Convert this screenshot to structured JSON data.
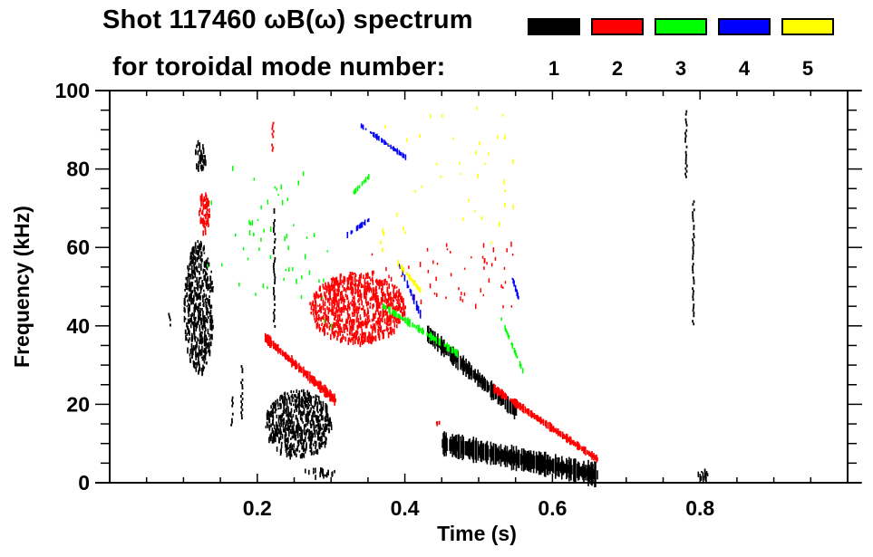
{
  "chart_data": {
    "type": "heatmap",
    "title": "Shot 117460 ωB(ω) spectrum",
    "subtitle": "for toroidal mode number:",
    "xlabel": "Time (s)",
    "ylabel": "Frequency (kHz)",
    "xlim": [
      0.0,
      1.0
    ],
    "ylim": [
      0,
      100
    ],
    "x_major_ticks": [
      0.2,
      0.4,
      0.6,
      0.8
    ],
    "x_tick_labels": [
      "0.2",
      "0.4",
      "0.6",
      "0.8"
    ],
    "x_minor_step": 0.05,
    "y_major_ticks": [
      0,
      20,
      40,
      60,
      80,
      100
    ],
    "y_tick_labels": [
      "0",
      "20",
      "40",
      "60",
      "80",
      "100"
    ],
    "y_minor_step": 5,
    "grid": false,
    "legend": {
      "placement": "top-right",
      "entries": [
        {
          "label": "1",
          "mode": 1,
          "color": "#000000"
        },
        {
          "label": "2",
          "mode": 2,
          "color": "#ff0000"
        },
        {
          "label": "3",
          "mode": 3,
          "color": "#00ff00"
        },
        {
          "label": "4",
          "mode": 4,
          "color": "#0000ff"
        },
        {
          "label": "5",
          "mode": 5,
          "color": "#ffff00"
        }
      ]
    },
    "features": [
      {
        "mode": 1,
        "kind": "blob",
        "t": [
          0.1,
          0.14
        ],
        "f": [
          28,
          62
        ],
        "density": 0.8
      },
      {
        "mode": 1,
        "kind": "blob",
        "t": [
          0.115,
          0.13
        ],
        "f": [
          80,
          88
        ],
        "density": 0.8
      },
      {
        "mode": 1,
        "kind": "streak",
        "t": [
          0.08,
          0.08
        ],
        "f": [
          40,
          44
        ],
        "density": 0.9
      },
      {
        "mode": 1,
        "kind": "streak",
        "t": [
          0.165,
          0.165
        ],
        "f": [
          15,
          22
        ],
        "density": 0.9
      },
      {
        "mode": 1,
        "kind": "streak",
        "t": [
          0.178,
          0.178
        ],
        "f": [
          16,
          30
        ],
        "density": 0.7
      },
      {
        "mode": 1,
        "kind": "streak",
        "t": [
          0.222,
          0.222
        ],
        "f": [
          40,
          70
        ],
        "density": 0.8
      },
      {
        "mode": 1,
        "kind": "blob",
        "t": [
          0.21,
          0.3
        ],
        "f": [
          7,
          24
        ],
        "density": 0.85
      },
      {
        "mode": 1,
        "kind": "blob",
        "t": [
          0.26,
          0.305
        ],
        "f": [
          2,
          4
        ],
        "density": 0.6
      },
      {
        "mode": 1,
        "kind": "track",
        "t": [
          0.45,
          0.66
        ],
        "f": [
          10,
          2
        ],
        "width": 8,
        "density": 0.9
      },
      {
        "mode": 1,
        "kind": "track",
        "t": [
          0.43,
          0.55
        ],
        "f": [
          38,
          18
        ],
        "width": 6,
        "density": 0.8
      },
      {
        "mode": 1,
        "kind": "streak",
        "t": [
          0.78,
          0.78
        ],
        "f": [
          78,
          95
        ],
        "density": 0.7
      },
      {
        "mode": 1,
        "kind": "streak",
        "t": [
          0.79,
          0.79
        ],
        "f": [
          40,
          72
        ],
        "density": 0.8
      },
      {
        "mode": 1,
        "kind": "blob",
        "t": [
          0.795,
          0.81
        ],
        "f": [
          1,
          4
        ],
        "density": 0.8
      },
      {
        "mode": 2,
        "kind": "blob",
        "t": [
          0.12,
          0.135
        ],
        "f": [
          64,
          75
        ],
        "density": 0.8
      },
      {
        "mode": 2,
        "kind": "blob",
        "t": [
          0.27,
          0.4
        ],
        "f": [
          36,
          54
        ],
        "density": 0.85
      },
      {
        "mode": 2,
        "kind": "track",
        "t": [
          0.21,
          0.305
        ],
        "f": [
          37,
          21
        ],
        "width": 4,
        "density": 0.9
      },
      {
        "mode": 2,
        "kind": "track",
        "t": [
          0.52,
          0.66
        ],
        "f": [
          24,
          6
        ],
        "width": 3,
        "density": 0.9
      },
      {
        "mode": 2,
        "kind": "streak",
        "t": [
          0.22,
          0.22
        ],
        "f": [
          85,
          92
        ],
        "density": 0.6
      },
      {
        "mode": 2,
        "kind": "blob",
        "t": [
          0.44,
          0.45
        ],
        "f": [
          15,
          16
        ],
        "density": 0.9
      },
      {
        "mode": 2,
        "kind": "scatter",
        "t": [
          0.35,
          0.55
        ],
        "f": [
          45,
          62
        ],
        "density": 0.2
      },
      {
        "mode": 3,
        "kind": "track",
        "t": [
          0.37,
          0.47
        ],
        "f": [
          45,
          33
        ],
        "width": 3,
        "density": 0.6
      },
      {
        "mode": 3,
        "kind": "track",
        "t": [
          0.33,
          0.35
        ],
        "f": [
          74,
          78
        ],
        "width": 2,
        "density": 0.6
      },
      {
        "mode": 3,
        "kind": "track",
        "t": [
          0.525,
          0.56
        ],
        "f": [
          44,
          28
        ],
        "width": 2,
        "density": 0.5
      },
      {
        "mode": 3,
        "kind": "scatter",
        "t": [
          0.13,
          0.3
        ],
        "f": [
          40,
          82
        ],
        "density": 0.08
      },
      {
        "mode": 4,
        "kind": "track",
        "t": [
          0.34,
          0.4
        ],
        "f": [
          91,
          83
        ],
        "width": 2,
        "density": 0.7
      },
      {
        "mode": 4,
        "kind": "track",
        "t": [
          0.39,
          0.42
        ],
        "f": [
          56,
          43
        ],
        "width": 3,
        "density": 0.7
      },
      {
        "mode": 4,
        "kind": "track",
        "t": [
          0.32,
          0.35
        ],
        "f": [
          63,
          67
        ],
        "width": 2,
        "density": 0.5
      },
      {
        "mode": 4,
        "kind": "track",
        "t": [
          0.545,
          0.555
        ],
        "f": [
          52,
          46
        ],
        "width": 2,
        "density": 0.7
      },
      {
        "mode": 5,
        "kind": "track",
        "t": [
          0.39,
          0.42
        ],
        "f": [
          56,
          49
        ],
        "width": 2,
        "density": 0.7
      },
      {
        "mode": 5,
        "kind": "scatter",
        "t": [
          0.36,
          0.55
        ],
        "f": [
          60,
          96
        ],
        "density": 0.06
      }
    ]
  }
}
